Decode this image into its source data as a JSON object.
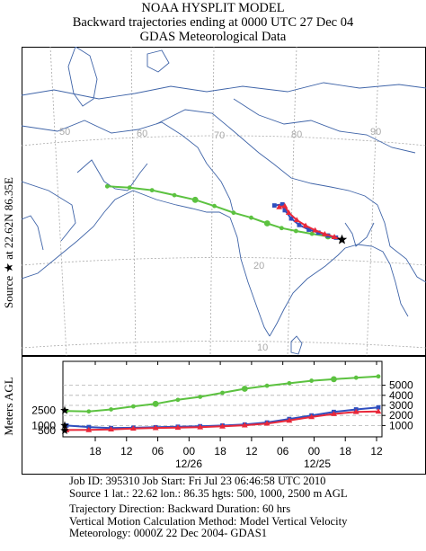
{
  "header": {
    "line1": "NOAA HYSPLIT MODEL",
    "line2": "Backward trajectories ending at 0000 UTC 27 Dec 04",
    "line3": "GDAS Meteorological Data"
  },
  "map": {
    "source_label": "Source ★ at 22.62N 86.35E",
    "lon_labels": [
      "50",
      "60",
      "70",
      "80",
      "90"
    ],
    "lat_labels": [
      "20",
      "10"
    ],
    "colors": {
      "background": "#ffffff",
      "coast": "#3f64a8",
      "grid": "#a9a9a9",
      "border": "#3f64a8"
    },
    "source": {
      "lat": 22.62,
      "lon": 86.35
    },
    "trajectories": [
      {
        "height_agl_m": 2500,
        "color": "#5cc240",
        "marker": "circle",
        "points": [
          [
            57.0,
            28.9
          ],
          [
            59.8,
            28.9
          ],
          [
            62.6,
            28.7
          ],
          [
            65.4,
            28.2
          ],
          [
            68.0,
            27.7
          ],
          [
            70.4,
            27.0
          ],
          [
            72.8,
            26.2
          ],
          [
            75.0,
            25.6
          ],
          [
            77.0,
            24.9
          ],
          [
            78.8,
            24.3
          ],
          [
            80.6,
            23.9
          ],
          [
            82.6,
            23.5
          ],
          [
            84.6,
            23.1
          ],
          [
            86.35,
            22.62
          ]
        ]
      },
      {
        "height_agl_m": 1000,
        "color": "#2f4fbf",
        "marker": "square",
        "points": [
          [
            77.9,
            27.0
          ],
          [
            78.9,
            27.1
          ],
          [
            79.2,
            26.4
          ],
          [
            80.0,
            25.4
          ],
          [
            81.0,
            24.6
          ],
          [
            82.2,
            24.0
          ],
          [
            83.4,
            23.6
          ],
          [
            84.6,
            23.2
          ],
          [
            85.6,
            22.9
          ],
          [
            86.35,
            22.62
          ]
        ]
      },
      {
        "height_agl_m": 500,
        "color": "#e8283a",
        "marker": "triangle",
        "points": [
          [
            78.5,
            26.8
          ],
          [
            79.2,
            26.9
          ],
          [
            79.7,
            26.1
          ],
          [
            80.7,
            25.2
          ],
          [
            81.8,
            24.5
          ],
          [
            83.0,
            23.9
          ],
          [
            84.2,
            23.4
          ],
          [
            85.4,
            23.0
          ],
          [
            86.35,
            22.62
          ]
        ]
      }
    ]
  },
  "vertical": {
    "ylabel": "Meters AGL",
    "left_ticks": [
      "2500",
      "1000",
      "500"
    ],
    "right_ticks": [
      "5000",
      "4000",
      "3000",
      "2000",
      "1000"
    ],
    "x_labels": [
      "18",
      "12",
      "06",
      "00",
      "18",
      "12",
      "06",
      "00",
      "18",
      "12"
    ],
    "date_labels": [
      "12/26",
      "12/25"
    ],
    "series": [
      {
        "height_agl_m": 2500,
        "color": "#5cc240",
        "values": [
          2450,
          2400,
          2600,
          2900,
          3150,
          3550,
          3850,
          4250,
          4650,
          4950,
          5200,
          5450,
          5600,
          5750,
          5880
        ]
      },
      {
        "height_agl_m": 1000,
        "color": "#2f4fbf",
        "values": [
          1000,
          850,
          750,
          780,
          830,
          880,
          930,
          1000,
          1100,
          1300,
          1650,
          2000,
          2350,
          2600,
          2800
        ]
      },
      {
        "height_agl_m": 500,
        "color": "#e8283a",
        "values": [
          550,
          560,
          620,
          700,
          760,
          790,
          840,
          920,
          1030,
          1200,
          1500,
          1850,
          2150,
          2350,
          2400
        ]
      }
    ]
  },
  "info": {
    "job_line": "Job ID: 395310        Job Start: Fri Jul 23 06:46:58 UTC 2010",
    "source_line": "Source 1 lat.: 22.62    lon.: 86.35 hgts: 500, 1000, 2500 m AGL",
    "direction_line": "Trajectory Direction: Backward       Duration: 60 hrs",
    "vertical_line": "Vertical Motion Calculation Method: Model Vertical Velocity",
    "meteorology_line": "Meteorology: 0000Z 22 Dec 2004- GDAS1"
  }
}
